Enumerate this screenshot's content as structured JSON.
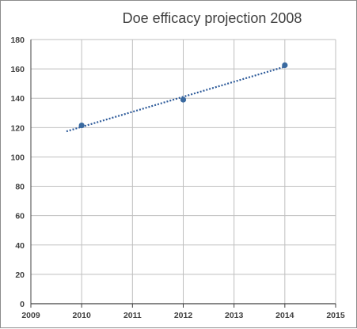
{
  "chart_data": {
    "type": "scatter",
    "title": "Doe efficacy projection 2008",
    "xlabel": "",
    "ylabel": "",
    "xlim": [
      2009,
      2015
    ],
    "ylim": [
      0,
      180
    ],
    "xticks": [
      "2009",
      "2010",
      "2011",
      "2012",
      "2013",
      "2014",
      "2015"
    ],
    "yticks": [
      "0",
      "20",
      "40",
      "60",
      "80",
      "100",
      "120",
      "140",
      "160",
      "180"
    ],
    "grid": true,
    "series": [
      {
        "points": [
          [
            2010,
            121.5
          ],
          [
            2012,
            139
          ],
          [
            2014,
            162.5
          ]
        ]
      }
    ],
    "trendline": {
      "type": "linear",
      "x_range": [
        2009.7,
        2014
      ],
      "color": "#2e5b9a"
    },
    "colors": {
      "marker": "#3a6aa0",
      "grid": "#bfbfbf",
      "axis": "#404040"
    }
  }
}
